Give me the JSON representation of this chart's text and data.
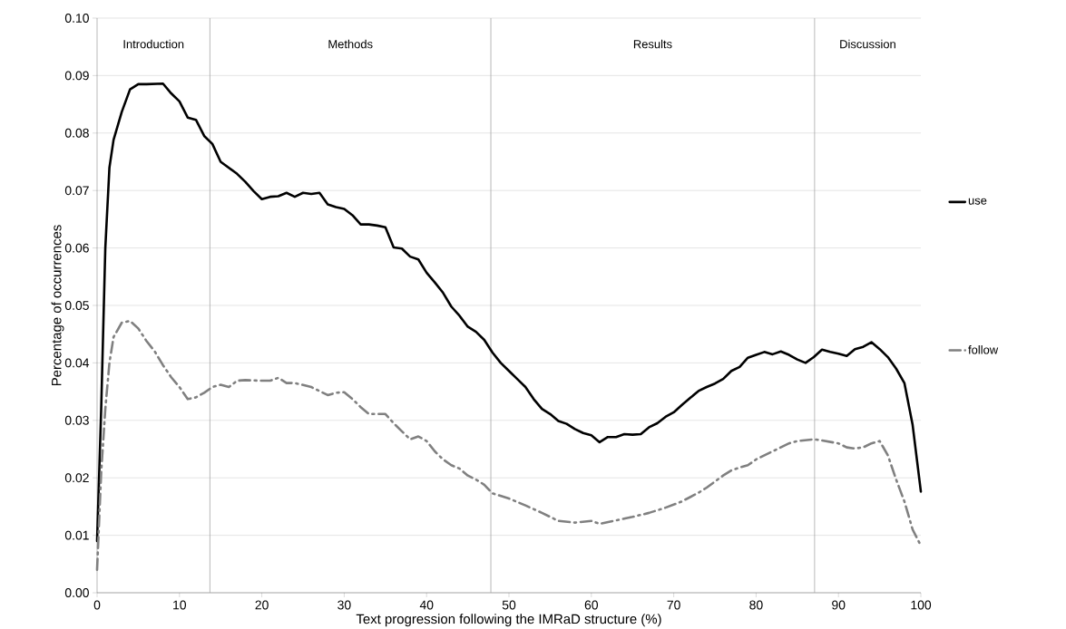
{
  "chart_data": {
    "type": "line",
    "xlabel": "Text progression following the IMRaD structure (%)",
    "ylabel": "Percentage of occurrences",
    "xlim": [
      0,
      100
    ],
    "xticks": [
      0,
      10,
      20,
      30,
      40,
      50,
      60,
      70,
      80,
      90,
      100
    ],
    "ylim": [
      0,
      0.1
    ],
    "yticks": [
      {
        "value": 0,
        "label": "0.00"
      },
      {
        "value": 0.01,
        "label": "0.01"
      },
      {
        "value": 0.02,
        "label": "0.02"
      },
      {
        "value": 0.03,
        "label": "0.03"
      },
      {
        "value": 0.04,
        "label": "0.04"
      },
      {
        "value": 0.05,
        "label": "0.05"
      },
      {
        "value": 0.06,
        "label": "0.06"
      },
      {
        "value": 0.07,
        "label": "0.07"
      },
      {
        "value": 0.08,
        "label": "0.08"
      },
      {
        "value": 0.09,
        "label": "0.09"
      },
      {
        "value": 0.1,
        "label": "0.10"
      }
    ],
    "grid": "y",
    "legend": "right",
    "marker": "none",
    "ref_lines": [
      {
        "axis": "x",
        "value": 13.7,
        "color": "#a6a6a6"
      },
      {
        "axis": "x",
        "value": 47.8,
        "color": "#a6a6a6"
      },
      {
        "axis": "x",
        "value": 87.1,
        "color": "#a6a6a6"
      }
    ],
    "annotations": [
      "Introduction",
      "Methods",
      "Results",
      "Discussion"
    ],
    "series": [
      {
        "name": "use",
        "color": "#000000",
        "line_style": "solid",
        "x": [
          0,
          0.5,
          1,
          1.5,
          2,
          3,
          4,
          5,
          6,
          8,
          9,
          10,
          11,
          12,
          13,
          14,
          15,
          17,
          18,
          19,
          20,
          21,
          22,
          23,
          24,
          25,
          26,
          27,
          28,
          29,
          30,
          31,
          32,
          33,
          34,
          35,
          36,
          37,
          38,
          39,
          40,
          41,
          42,
          43,
          44,
          45,
          46,
          47,
          48,
          49,
          50,
          51,
          52,
          53,
          54,
          55,
          56,
          57,
          58,
          59,
          60,
          61,
          62,
          63,
          64,
          65,
          66,
          67,
          68,
          69,
          70,
          71,
          72,
          73,
          74,
          75,
          76,
          77,
          78,
          79,
          80,
          81,
          82,
          83,
          84,
          85,
          86,
          87,
          88,
          89,
          90,
          91,
          92,
          93,
          94,
          95,
          96,
          97,
          98,
          99,
          100
        ],
        "values": [
          0.009,
          0.032,
          0.06,
          0.074,
          0.0788,
          0.0837,
          0.0876,
          0.0885,
          0.0885,
          0.0886,
          0.0869,
          0.0855,
          0.0827,
          0.0823,
          0.0795,
          0.0781,
          0.075,
          0.0729,
          0.0715,
          0.0699,
          0.0685,
          0.0689,
          0.069,
          0.0696,
          0.0689,
          0.0696,
          0.0694,
          0.0696,
          0.0676,
          0.0671,
          0.0668,
          0.0657,
          0.0641,
          0.0641,
          0.0639,
          0.0636,
          0.0601,
          0.0599,
          0.0585,
          0.058,
          0.0557,
          0.054,
          0.0522,
          0.0498,
          0.0482,
          0.0463,
          0.0454,
          0.044,
          0.0418,
          0.04,
          0.0386,
          0.0372,
          0.0358,
          0.0337,
          0.032,
          0.0311,
          0.0299,
          0.0294,
          0.0285,
          0.0278,
          0.0274,
          0.0262,
          0.0271,
          0.0271,
          0.0276,
          0.0275,
          0.0276,
          0.0288,
          0.0295,
          0.0306,
          0.0314,
          0.0327,
          0.0339,
          0.0351,
          0.0358,
          0.0364,
          0.0372,
          0.0386,
          0.0393,
          0.0409,
          0.0414,
          0.0419,
          0.0415,
          0.042,
          0.0414,
          0.0406,
          0.04,
          0.041,
          0.0423,
          0.0419,
          0.0416,
          0.0412,
          0.0424,
          0.0428,
          0.0436,
          0.0424,
          0.041,
          0.039,
          0.0365,
          0.0292,
          0.0176
        ]
      },
      {
        "name": "follow",
        "color": "#808080",
        "line_style": "dashdotted",
        "x": [
          0,
          0.5,
          1,
          1.5,
          2,
          3,
          4,
          5,
          6,
          7,
          8,
          9,
          10,
          11,
          12,
          13,
          14,
          15,
          16,
          17,
          18,
          20,
          21,
          22,
          23,
          24,
          26,
          28,
          29,
          30,
          31,
          32,
          33,
          35,
          36,
          37,
          38,
          39,
          40,
          41,
          42,
          43,
          44,
          45,
          46,
          47,
          48,
          50,
          52,
          54,
          56,
          58,
          60,
          61,
          63,
          65,
          67,
          69,
          71,
          73,
          74,
          76,
          77,
          78,
          79,
          80,
          82,
          84,
          85,
          87,
          88,
          90,
          91,
          92,
          93,
          94,
          95,
          96,
          97,
          98,
          99,
          100
        ],
        "values": [
          0.004,
          0.021,
          0.032,
          0.04,
          0.0445,
          0.047,
          0.0473,
          0.046,
          0.0438,
          0.042,
          0.0396,
          0.0375,
          0.0358,
          0.0337,
          0.034,
          0.0348,
          0.0358,
          0.0362,
          0.0358,
          0.0369,
          0.037,
          0.0369,
          0.0369,
          0.0374,
          0.0365,
          0.0365,
          0.0358,
          0.0344,
          0.0348,
          0.0349,
          0.0337,
          0.0323,
          0.0311,
          0.0311,
          0.0295,
          0.0281,
          0.0267,
          0.0272,
          0.0264,
          0.0246,
          0.0232,
          0.0222,
          0.0216,
          0.0204,
          0.0197,
          0.0188,
          0.0173,
          0.0164,
          0.0152,
          0.0139,
          0.0125,
          0.0122,
          0.0125,
          0.012,
          0.0126,
          0.0132,
          0.0139,
          0.0148,
          0.0159,
          0.0174,
          0.0183,
          0.0204,
          0.0213,
          0.0218,
          0.0222,
          0.0232,
          0.0246,
          0.026,
          0.0264,
          0.0267,
          0.0265,
          0.026,
          0.0253,
          0.0251,
          0.0253,
          0.026,
          0.0264,
          0.0239,
          0.0197,
          0.0159,
          0.011,
          0.0082
        ]
      }
    ]
  }
}
